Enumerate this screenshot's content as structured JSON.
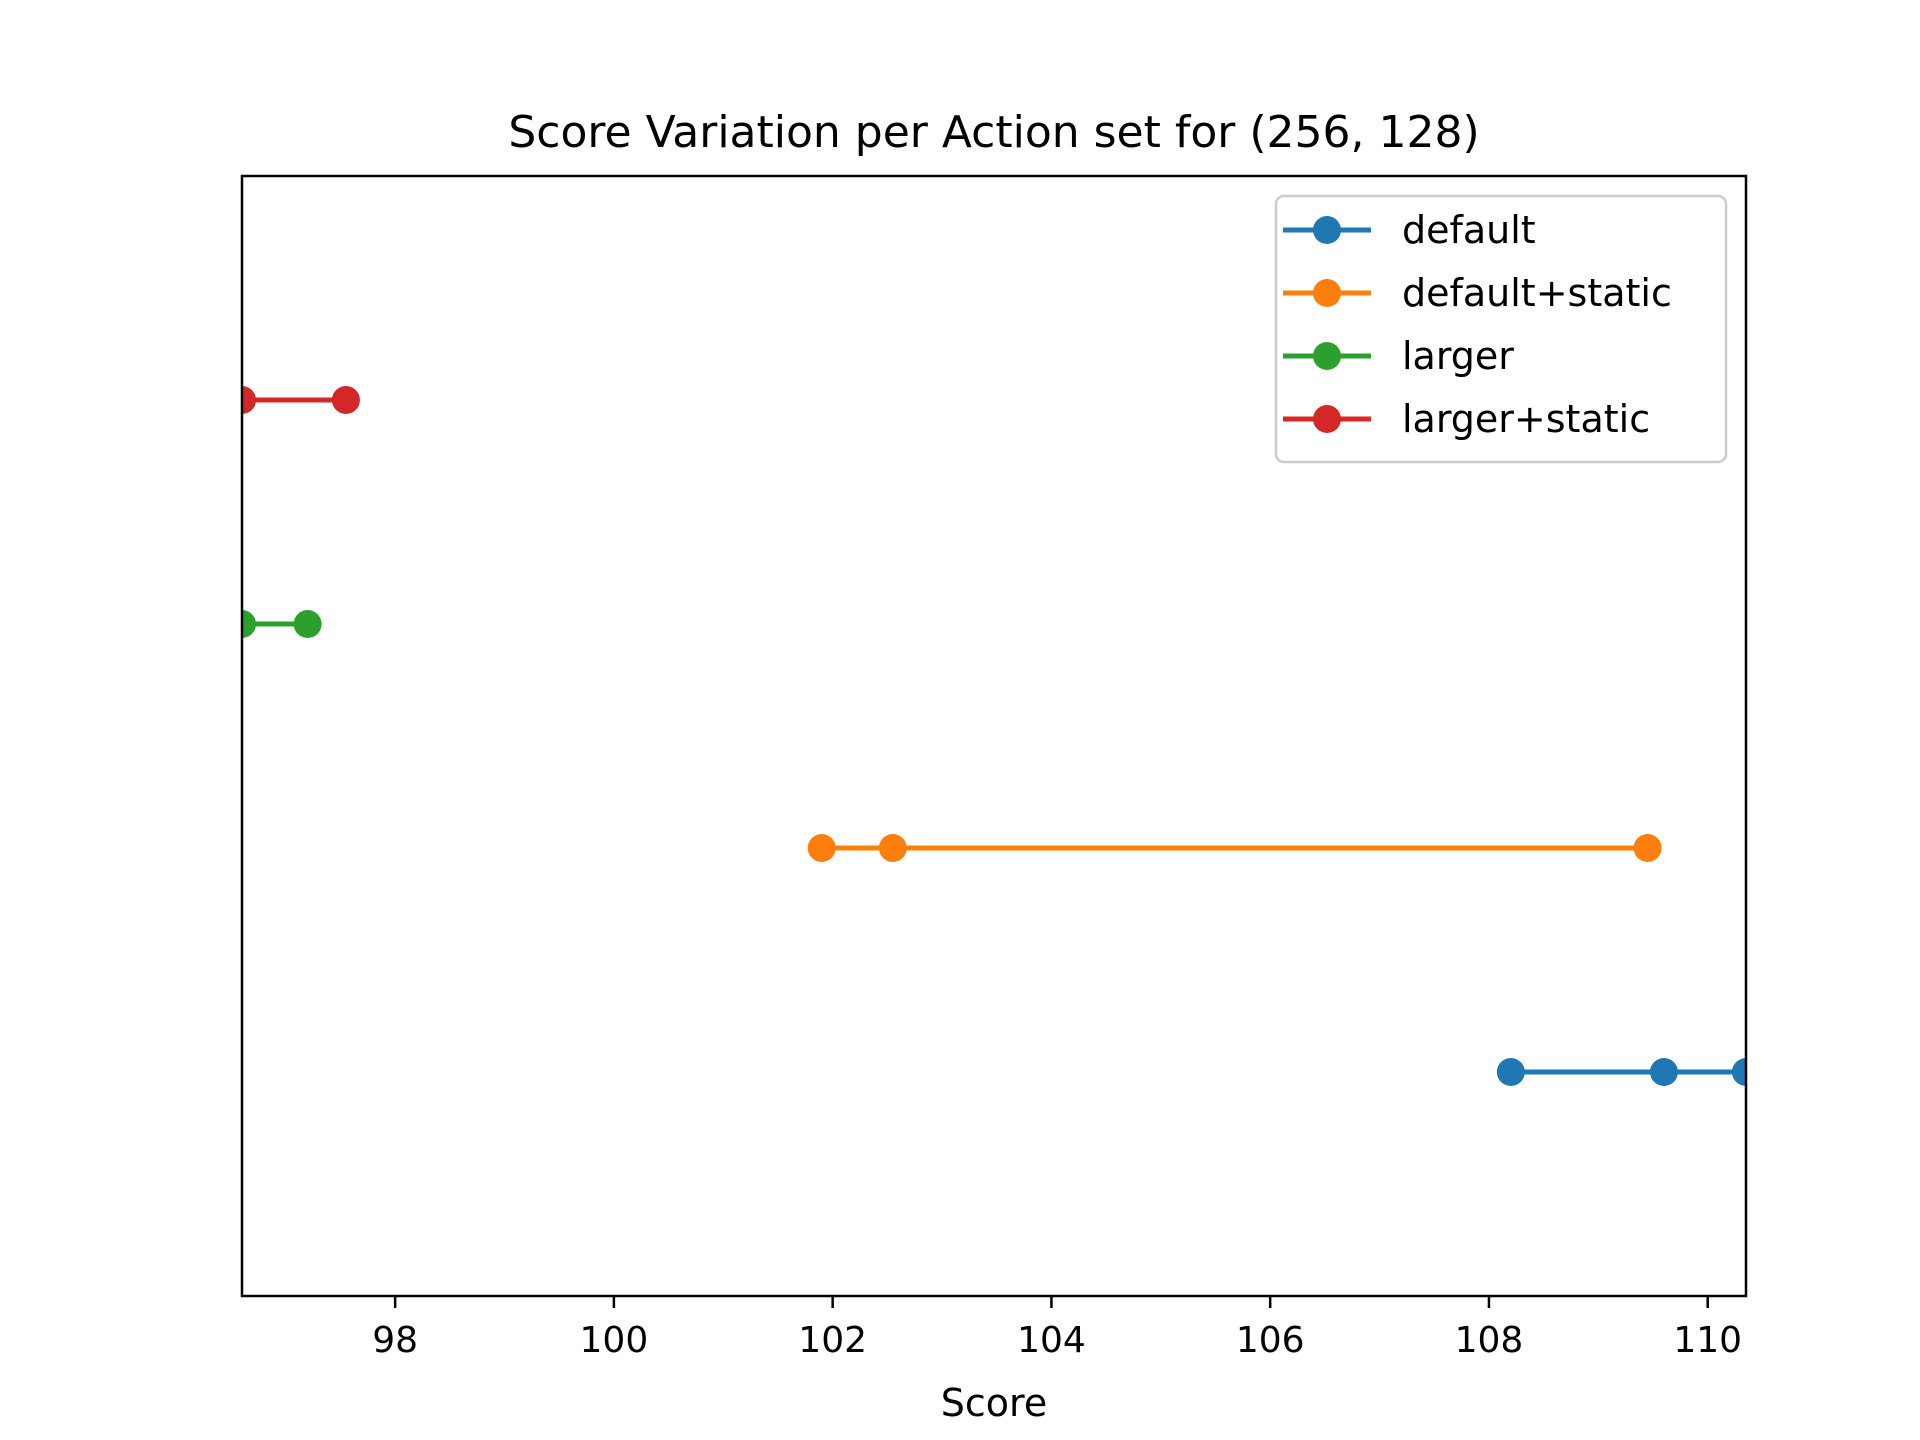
{
  "chart_data": {
    "type": "line",
    "title": "Score Variation per Action set for (256, 128)",
    "xlabel": "Score",
    "ylabel": "",
    "xlim": [
      96.6,
      110.35
    ],
    "ylim": [
      -1,
      4
    ],
    "xticks": [
      98,
      100,
      102,
      104,
      106,
      108,
      110
    ],
    "yticks": [],
    "grid": false,
    "legend_position": "top-right",
    "series": [
      {
        "name": "default",
        "color": "#1f77b4",
        "y": 0,
        "x": [
          108.2,
          109.6,
          110.35
        ]
      },
      {
        "name": "default+static",
        "color": "#ff7f0e",
        "y": 1,
        "x": [
          101.9,
          102.55,
          109.45
        ]
      },
      {
        "name": "larger",
        "color": "#2ca02c",
        "y": 2,
        "x": [
          96.6,
          97.2
        ]
      },
      {
        "name": "larger+static",
        "color": "#d62728",
        "y": 3,
        "x": [
          96.6,
          97.55
        ]
      }
    ]
  }
}
